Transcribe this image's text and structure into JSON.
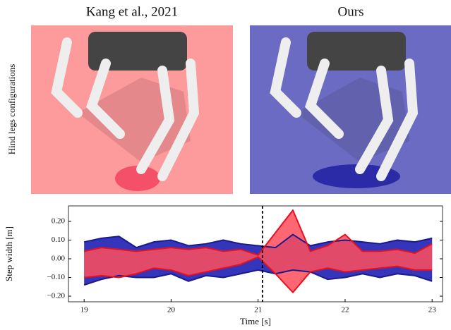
{
  "panels": [
    {
      "title": "Kang et al., 2021"
    },
    {
      "title": "Ours"
    }
  ],
  "row_label": "Hind legs configurations",
  "chart_data": {
    "type": "band",
    "xlabel": "Time [s]",
    "ylabel": "Step width [m]",
    "x": [
      19,
      19.2,
      19.4,
      19.6,
      19.8,
      20,
      20.2,
      20.4,
      20.6,
      20.8,
      21,
      21.2,
      21.4,
      21.6,
      21.8,
      22,
      22.2,
      22.4,
      22.6,
      22.8,
      23
    ],
    "series": [
      {
        "color": "#2a2ab8",
        "upper": [
          0.09,
          0.11,
          0.12,
          0.06,
          0.09,
          0.1,
          0.07,
          0.08,
          0.1,
          0.08,
          0.07,
          0.06,
          0.13,
          0.07,
          0.09,
          0.1,
          0.09,
          0.08,
          0.1,
          0.09,
          0.11
        ],
        "lower": [
          -0.14,
          -0.11,
          -0.09,
          -0.1,
          -0.1,
          -0.08,
          -0.12,
          -0.09,
          -0.1,
          -0.08,
          -0.06,
          -0.08,
          -0.06,
          -0.07,
          -0.11,
          -0.1,
          -0.08,
          -0.1,
          -0.08,
          -0.09,
          -0.12
        ]
      },
      {
        "color": "#ff4d5a",
        "upper": [
          0.04,
          0.06,
          0.05,
          0.04,
          0.05,
          0.06,
          0.05,
          0.06,
          0.04,
          0.05,
          0.02,
          0.14,
          0.26,
          0.04,
          0.07,
          0.13,
          0.04,
          0.04,
          0.05,
          0.03,
          0.08
        ],
        "lower": [
          -0.1,
          -0.09,
          -0.1,
          -0.08,
          -0.05,
          -0.06,
          -0.09,
          -0.07,
          -0.05,
          -0.03,
          0.01,
          -0.08,
          -0.18,
          -0.07,
          -0.05,
          -0.07,
          -0.06,
          -0.05,
          -0.04,
          -0.06,
          -0.06
        ]
      }
    ],
    "vline": 21.05,
    "xlim": [
      18.82,
      23.12
    ],
    "ylim": [
      -0.23,
      0.283
    ],
    "xticks": [
      19,
      20,
      21,
      22,
      23
    ],
    "yticks": [
      {
        "value": 0.2,
        "label": "0.20"
      },
      {
        "value": 0.1,
        "label": "0.10"
      },
      {
        "value": 0,
        "label": "0.00"
      },
      {
        "value": -0.1,
        "label": "−0.10"
      },
      {
        "value": -0.2,
        "label": "−0.20"
      }
    ]
  }
}
